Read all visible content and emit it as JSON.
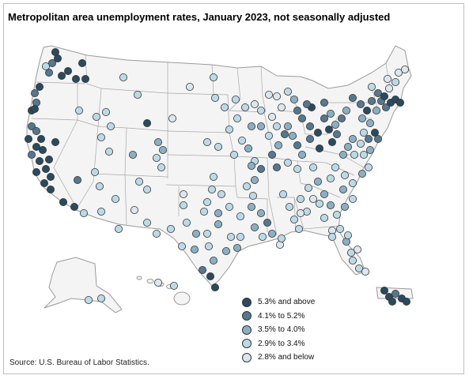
{
  "title": "Metropolitan area unemployment rates, January 2023, not seasonally adjusted",
  "source": "Source: U.S. Bureau of Labor Statistics.",
  "legend": [
    {
      "label": "5.3% and above",
      "color": "#2b4a5e"
    },
    {
      "label": "4.1% to 5.2%",
      "color": "#55788f"
    },
    {
      "label": "3.5% to 4.0%",
      "color": "#8aafc3"
    },
    {
      "label": "2.9% to 3.4%",
      "color": "#bcd9e7"
    },
    {
      "label": "2.8% and below",
      "color": "#dde6ed"
    }
  ],
  "colors": {
    "state_fill": "#f4f4f4",
    "state_border": "#9a9a9a",
    "dot_stroke": "#333333"
  }
}
